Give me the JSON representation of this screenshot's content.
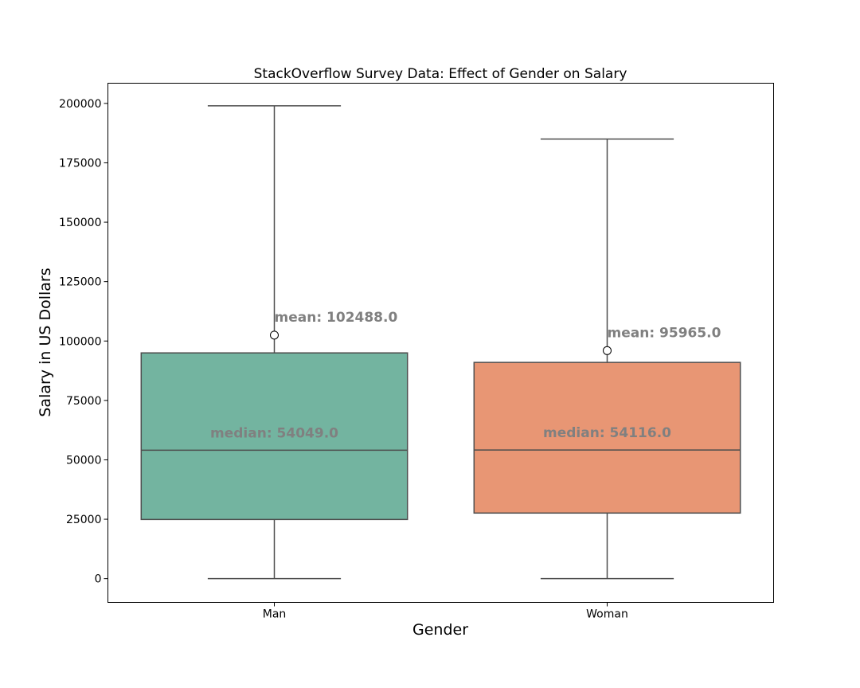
{
  "chart_data": {
    "type": "box",
    "title": "StackOverflow Survey Data: Effect of Gender on Salary",
    "xlabel": "Gender",
    "ylabel": "Salary in US Dollars",
    "ylim": [
      -10000,
      208500
    ],
    "yticks": [
      0,
      25000,
      50000,
      75000,
      100000,
      125000,
      150000,
      175000,
      200000
    ],
    "ytick_labels": [
      "0",
      "25000",
      "50000",
      "75000",
      "100000",
      "125000",
      "150000",
      "175000",
      "200000"
    ],
    "grid": false,
    "legend": "none",
    "categories": [
      "Man",
      "Woman"
    ],
    "boxes": [
      {
        "category": "Man",
        "whisker_low": 0,
        "q1": 24900,
        "median": 54049.0,
        "q3": 95000,
        "whisker_high": 199000,
        "mean": 102488.0,
        "color": "#73b4a0",
        "mean_label": "mean: 102488.0",
        "median_label": "median: 54049.0"
      },
      {
        "category": "Woman",
        "whisker_low": 0,
        "q1": 27600,
        "median": 54116.0,
        "q3": 91000,
        "whisker_high": 185000,
        "mean": 95965.0,
        "color": "#e89674",
        "mean_label": "mean: 95965.0",
        "median_label": "median: 54116.0"
      }
    ]
  }
}
